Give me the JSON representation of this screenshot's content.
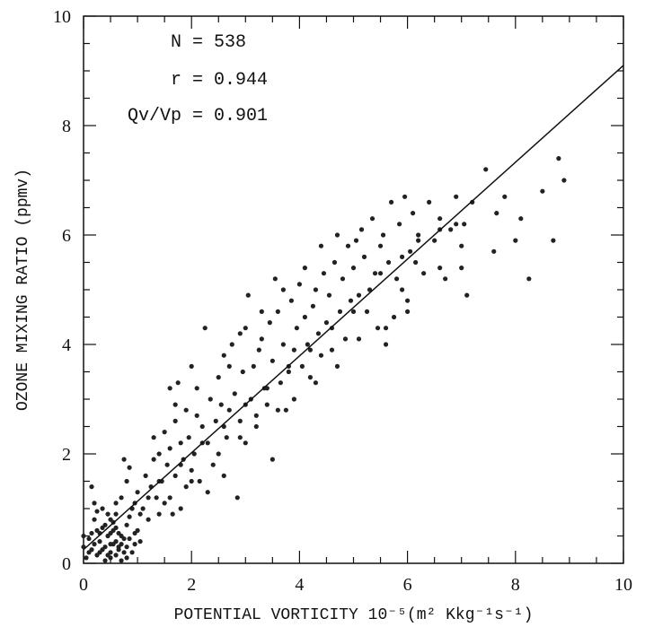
{
  "chart_data": {
    "type": "scatter",
    "title": "",
    "xlabel": "POTENTIAL VORTICITY 10⁻⁵(m² Kkg⁻¹s⁻¹)",
    "ylabel": "OZONE MIXING RATIO (ppmv)",
    "xlim": [
      0,
      10
    ],
    "ylim": [
      0,
      10
    ],
    "xticks": [
      0,
      2,
      4,
      6,
      8,
      10
    ],
    "yticks": [
      0,
      2,
      4,
      6,
      8,
      10
    ],
    "grid": false,
    "annotations": [
      "N = 538",
      "r = 0.944",
      "Qv/Vp = 0.901"
    ],
    "fit_line": {
      "x": [
        0,
        10
      ],
      "y": [
        0.25,
        9.1
      ]
    },
    "series": [
      {
        "points": [
          [
            0.0,
            0.5
          ],
          [
            0.0,
            0.3
          ],
          [
            0.05,
            0.1
          ],
          [
            0.1,
            0.45
          ],
          [
            0.15,
            1.4
          ],
          [
            0.2,
            0.8
          ],
          [
            0.25,
            0.6
          ],
          [
            0.3,
            0.4
          ],
          [
            0.3,
            0.2
          ],
          [
            0.35,
            1.0
          ],
          [
            0.4,
            0.3
          ],
          [
            0.4,
            0.7
          ],
          [
            0.45,
            0.5
          ],
          [
            0.5,
            0.2
          ],
          [
            0.5,
            0.1
          ],
          [
            0.55,
            0.6
          ],
          [
            0.6,
            0.4
          ],
          [
            0.6,
            0.9
          ],
          [
            0.65,
            0.3
          ],
          [
            0.7,
            0.5
          ],
          [
            0.7,
            1.2
          ],
          [
            0.75,
            0.2
          ],
          [
            0.8,
            0.7
          ],
          [
            0.8,
            0.1
          ],
          [
            0.85,
            0.45
          ],
          [
            0.9,
            1.0
          ],
          [
            0.95,
            0.35
          ],
          [
            1.0,
            1.3
          ],
          [
            1.0,
            0.6
          ],
          [
            1.05,
            0.9
          ],
          [
            0.2,
            0.35
          ],
          [
            0.35,
            0.25
          ],
          [
            0.45,
            0.15
          ],
          [
            0.55,
            0.35
          ],
          [
            0.65,
            0.25
          ],
          [
            0.75,
            0.45
          ],
          [
            0.5,
            0.55
          ],
          [
            0.6,
            0.15
          ],
          [
            0.4,
            0.05
          ],
          [
            0.7,
            0.05
          ],
          [
            0.3,
            0.55
          ],
          [
            0.5,
            0.8
          ],
          [
            0.6,
            1.1
          ],
          [
            0.2,
            1.1
          ],
          [
            0.8,
            1.5
          ],
          [
            0.75,
            1.9
          ],
          [
            0.85,
            1.75
          ],
          [
            0.9,
            0.2
          ],
          [
            0.25,
            0.95
          ],
          [
            0.15,
            0.25
          ],
          [
            1.1,
            1.0
          ],
          [
            1.15,
            1.6
          ],
          [
            1.2,
            0.8
          ],
          [
            1.25,
            1.4
          ],
          [
            1.3,
            1.9
          ],
          [
            1.35,
            1.2
          ],
          [
            1.4,
            2.0
          ],
          [
            1.45,
            1.5
          ],
          [
            1.5,
            2.4
          ],
          [
            1.5,
            1.1
          ],
          [
            1.55,
            1.8
          ],
          [
            1.6,
            2.1
          ],
          [
            1.6,
            3.2
          ],
          [
            1.65,
            0.9
          ],
          [
            1.7,
            2.6
          ],
          [
            1.7,
            1.6
          ],
          [
            1.75,
            3.3
          ],
          [
            1.8,
            2.2
          ],
          [
            1.85,
            1.9
          ],
          [
            1.9,
            2.8
          ],
          [
            1.9,
            1.4
          ],
          [
            1.95,
            2.3
          ],
          [
            2.0,
            3.6
          ],
          [
            2.0,
            1.7
          ],
          [
            2.05,
            2.0
          ],
          [
            2.1,
            2.7
          ],
          [
            2.15,
            1.5
          ],
          [
            2.2,
            2.5
          ],
          [
            2.25,
            4.3
          ],
          [
            2.3,
            2.2
          ],
          [
            2.35,
            3.0
          ],
          [
            2.4,
            1.8
          ],
          [
            2.45,
            2.6
          ],
          [
            2.5,
            3.4
          ],
          [
            2.5,
            2.0
          ],
          [
            2.55,
            2.9
          ],
          [
            2.6,
            3.8
          ],
          [
            2.65,
            2.3
          ],
          [
            2.7,
            2.8
          ],
          [
            2.75,
            4.0
          ],
          [
            2.8,
            3.1
          ],
          [
            2.85,
            1.2
          ],
          [
            2.9,
            2.6
          ],
          [
            2.9,
            4.2
          ],
          [
            2.95,
            3.5
          ],
          [
            3.0,
            2.2
          ],
          [
            3.05,
            4.9
          ],
          [
            3.1,
            3.0
          ],
          [
            3.15,
            3.6
          ],
          [
            3.2,
            2.7
          ],
          [
            3.25,
            3.9
          ],
          [
            3.3,
            4.1
          ],
          [
            3.35,
            3.2
          ],
          [
            3.4,
            2.9
          ],
          [
            3.45,
            4.4
          ],
          [
            3.5,
            1.9
          ],
          [
            3.5,
            3.7
          ],
          [
            3.55,
            5.2
          ],
          [
            3.6,
            4.6
          ],
          [
            3.65,
            3.3
          ],
          [
            3.7,
            4.0
          ],
          [
            3.75,
            2.8
          ],
          [
            3.8,
            3.5
          ],
          [
            3.85,
            4.8
          ],
          [
            3.9,
            3.9
          ],
          [
            3.95,
            4.3
          ],
          [
            4.0,
            5.1
          ],
          [
            4.05,
            3.6
          ],
          [
            4.1,
            4.5
          ],
          [
            4.15,
            4.0
          ],
          [
            4.2,
            3.4
          ],
          [
            4.25,
            4.7
          ],
          [
            4.3,
            5.0
          ],
          [
            4.35,
            4.2
          ],
          [
            4.4,
            3.8
          ],
          [
            4.45,
            5.3
          ],
          [
            4.5,
            4.4
          ],
          [
            4.55,
            4.9
          ],
          [
            4.6,
            3.9
          ],
          [
            4.65,
            5.5
          ],
          [
            4.7,
            6.0
          ],
          [
            4.75,
            4.6
          ],
          [
            4.8,
            5.2
          ],
          [
            4.85,
            4.1
          ],
          [
            4.9,
            5.8
          ],
          [
            4.95,
            4.8
          ],
          [
            5.0,
            5.4
          ],
          [
            5.05,
            5.9
          ],
          [
            5.1,
            4.9
          ],
          [
            5.15,
            6.1
          ],
          [
            5.2,
            5.6
          ],
          [
            5.25,
            4.6
          ],
          [
            5.3,
            5.0
          ],
          [
            5.35,
            6.3
          ],
          [
            5.4,
            5.3
          ],
          [
            5.45,
            4.3
          ],
          [
            5.5,
            5.8
          ],
          [
            5.55,
            6.0
          ],
          [
            5.6,
            4.0
          ],
          [
            5.65,
            5.5
          ],
          [
            5.7,
            6.6
          ],
          [
            5.75,
            4.5
          ],
          [
            5.8,
            5.2
          ],
          [
            5.85,
            6.2
          ],
          [
            5.9,
            5.0
          ],
          [
            5.95,
            6.7
          ],
          [
            6.0,
            4.8
          ],
          [
            6.05,
            5.7
          ],
          [
            6.1,
            6.4
          ],
          [
            6.15,
            5.5
          ],
          [
            6.2,
            6.0
          ],
          [
            6.3,
            5.3
          ],
          [
            6.4,
            6.6
          ],
          [
            6.5,
            5.9
          ],
          [
            6.6,
            6.3
          ],
          [
            6.7,
            5.2
          ],
          [
            6.8,
            6.1
          ],
          [
            6.9,
            6.7
          ],
          [
            7.0,
            5.4
          ],
          [
            7.05,
            6.2
          ],
          [
            7.1,
            4.9
          ],
          [
            7.2,
            6.6
          ],
          [
            7.45,
            7.2
          ],
          [
            7.6,
            5.7
          ],
          [
            7.65,
            6.4
          ],
          [
            7.8,
            6.7
          ],
          [
            8.0,
            5.9
          ],
          [
            8.1,
            6.3
          ],
          [
            8.25,
            5.2
          ],
          [
            8.5,
            6.8
          ],
          [
            8.7,
            5.9
          ],
          [
            8.8,
            7.4
          ],
          [
            8.9,
            7.0
          ],
          [
            6.2,
            5.9
          ],
          [
            6.6,
            6.1
          ],
          [
            6.9,
            6.2
          ],
          [
            5.9,
            5.6
          ],
          [
            5.5,
            5.3
          ],
          [
            5.0,
            4.6
          ],
          [
            4.6,
            4.3
          ],
          [
            4.2,
            3.9
          ],
          [
            3.8,
            3.6
          ],
          [
            3.4,
            3.2
          ],
          [
            3.0,
            2.9
          ],
          [
            2.6,
            2.5
          ],
          [
            2.2,
            2.2
          ],
          [
            1.8,
            1.8
          ],
          [
            1.4,
            1.5
          ],
          [
            1.2,
            1.2
          ],
          [
            0.95,
            1.1
          ],
          [
            1.4,
            0.9
          ],
          [
            1.6,
            1.2
          ],
          [
            1.8,
            1.0
          ],
          [
            2.0,
            1.5
          ],
          [
            2.3,
            1.3
          ],
          [
            2.6,
            1.6
          ],
          [
            2.9,
            2.3
          ],
          [
            3.2,
            2.5
          ],
          [
            3.6,
            2.8
          ],
          [
            3.9,
            3.0
          ],
          [
            4.3,
            3.3
          ],
          [
            4.7,
            3.6
          ],
          [
            5.1,
            4.1
          ],
          [
            5.6,
            4.3
          ],
          [
            6.0,
            4.6
          ],
          [
            6.6,
            5.4
          ],
          [
            7.0,
            5.8
          ],
          [
            1.3,
            2.3
          ],
          [
            1.7,
            2.9
          ],
          [
            2.1,
            3.2
          ],
          [
            2.7,
            3.6
          ],
          [
            3.0,
            4.3
          ],
          [
            3.3,
            4.6
          ],
          [
            3.7,
            5.0
          ],
          [
            4.1,
            5.4
          ],
          [
            4.4,
            5.8
          ],
          [
            0.55,
            0.75
          ],
          [
            0.45,
            0.9
          ],
          [
            0.35,
            0.65
          ],
          [
            0.65,
            0.55
          ],
          [
            0.85,
            0.85
          ],
          [
            0.95,
            0.55
          ],
          [
            1.05,
            0.4
          ],
          [
            0.25,
            0.15
          ],
          [
            0.15,
            0.55
          ],
          [
            0.1,
            0.2
          ],
          [
            0.5,
            0.35
          ],
          [
            0.6,
            0.65
          ],
          [
            0.7,
            0.35
          ],
          [
            0.8,
            0.3
          ]
        ]
      }
    ]
  }
}
